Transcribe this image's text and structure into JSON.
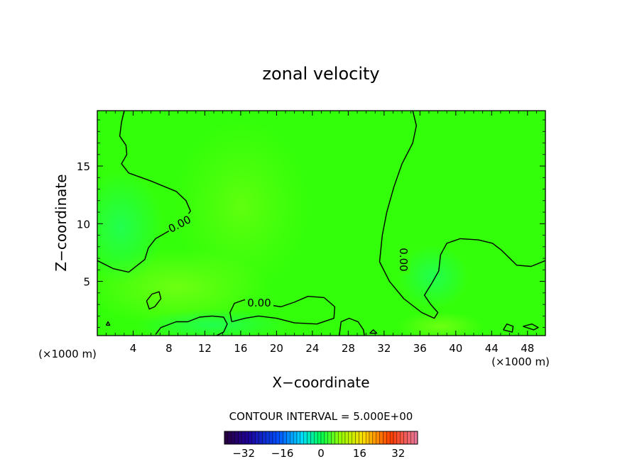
{
  "chart_data": {
    "type": "heatmap",
    "title": "zonal velocity",
    "xlabel": "X−coordinate",
    "ylabel": "Z−coordinate",
    "xlim": [
      0,
      50
    ],
    "ylim": [
      0.3,
      19.8
    ],
    "x_ticks": [
      4,
      8,
      12,
      16,
      20,
      24,
      28,
      32,
      36,
      40,
      44,
      48
    ],
    "x_tick_labels": [
      "4",
      "8",
      "12",
      "16",
      "20",
      "24",
      "28",
      "32",
      "36",
      "40",
      "44",
      "48"
    ],
    "y_ticks": [
      5,
      10,
      15
    ],
    "y_tick_labels": [
      "5",
      "10",
      "15"
    ],
    "x_unit_left": "(×1000 m)",
    "x_unit_right": "(×1000 m)",
    "contour_level": 0,
    "contour_labels": [
      "0.00",
      "0.00",
      "0.00"
    ],
    "contour_interval_text": "CONTOUR INTERVAL = 5.000E+00",
    "colorbar": {
      "range": [
        -40,
        40
      ],
      "tick_values": [
        -32,
        -16,
        0,
        16,
        32
      ],
      "tick_labels": [
        "−32",
        "−16",
        "0",
        "16",
        "32"
      ]
    },
    "contour_lines": [
      [
        [
          3.0,
          19.8
        ],
        [
          2.7,
          18.8
        ],
        [
          2.5,
          17.6
        ],
        [
          3.2,
          16.8
        ],
        [
          3.3,
          16.0
        ],
        [
          2.7,
          15.2
        ],
        [
          3.5,
          14.4
        ],
        [
          6.0,
          13.7
        ],
        [
          8.8,
          12.8
        ],
        [
          9.9,
          12.0
        ],
        [
          10.4,
          11.1
        ],
        [
          9.6,
          10.2
        ],
        [
          8.3,
          9.5
        ],
        [
          6.5,
          8.7
        ],
        [
          5.7,
          7.9
        ],
        [
          5.3,
          6.9
        ],
        [
          3.5,
          5.8
        ],
        [
          1.8,
          6.1
        ],
        [
          0,
          6.8
        ]
      ],
      [
        [
          35.2,
          19.8
        ],
        [
          35.6,
          18.5
        ],
        [
          35.2,
          17.0
        ],
        [
          34.0,
          15.2
        ],
        [
          33.1,
          13.2
        ],
        [
          32.3,
          11.0
        ],
        [
          31.8,
          9.0
        ],
        [
          31.5,
          6.7
        ],
        [
          32.6,
          5.0
        ],
        [
          34.2,
          3.5
        ],
        [
          36.2,
          2.3
        ],
        [
          37.6,
          1.8
        ],
        [
          38.0,
          2.3
        ],
        [
          37.2,
          3.0
        ],
        [
          36.5,
          3.8
        ],
        [
          37.3,
          4.8
        ],
        [
          38.1,
          5.9
        ],
        [
          38.3,
          7.3
        ],
        [
          39.0,
          8.3
        ],
        [
          40.5,
          8.7
        ],
        [
          42.5,
          8.6
        ],
        [
          44.1,
          8.3
        ],
        [
          45.1,
          7.7
        ],
        [
          46.8,
          6.4
        ],
        [
          48.4,
          6.3
        ],
        [
          50,
          6.8
        ]
      ],
      [
        [
          15.0,
          1.5
        ],
        [
          14.8,
          2.3
        ],
        [
          15.3,
          3.1
        ],
        [
          16.4,
          3.4
        ],
        [
          18.8,
          3.0
        ],
        [
          20.5,
          2.8
        ],
        [
          22.0,
          3.2
        ],
        [
          23.5,
          3.7
        ],
        [
          25.3,
          3.6
        ],
        [
          26.5,
          2.8
        ],
        [
          26.4,
          1.8
        ],
        [
          24.5,
          1.3
        ],
        [
          22.0,
          1.4
        ],
        [
          20.0,
          1.8
        ],
        [
          18.0,
          2.0
        ],
        [
          16.5,
          1.8
        ],
        [
          15.0,
          1.5
        ]
      ],
      [
        [
          5.5,
          3.3
        ],
        [
          6.1,
          3.9
        ],
        [
          6.9,
          4.1
        ],
        [
          7.1,
          3.5
        ],
        [
          6.4,
          2.8
        ],
        [
          5.8,
          2.6
        ],
        [
          5.5,
          3.3
        ]
      ],
      [
        [
          6.5,
          0.4
        ],
        [
          7.1,
          1.0
        ],
        [
          8.8,
          1.5
        ],
        [
          10.1,
          1.5
        ],
        [
          11.4,
          1.9
        ],
        [
          12.8,
          2.0
        ],
        [
          14.1,
          1.9
        ],
        [
          14.5,
          1.3
        ],
        [
          14.1,
          0.6
        ],
        [
          13.3,
          0.3
        ]
      ],
      [
        [
          27.0,
          0.3
        ],
        [
          27.2,
          1.5
        ],
        [
          28.1,
          1.8
        ],
        [
          29.1,
          1.5
        ],
        [
          29.7,
          0.8
        ],
        [
          29.8,
          0.3
        ]
      ],
      [
        [
          45.3,
          0.8
        ],
        [
          45.7,
          1.3
        ],
        [
          46.4,
          1.1
        ],
        [
          46.3,
          0.6
        ],
        [
          45.3,
          0.8
        ]
      ],
      [
        [
          47.5,
          1.1
        ],
        [
          48.5,
          1.3
        ],
        [
          49.2,
          1.0
        ],
        [
          48.7,
          0.8
        ],
        [
          47.5,
          1.1
        ]
      ],
      [
        [
          30.4,
          0.5
        ],
        [
          30.8,
          0.8
        ],
        [
          31.2,
          0.5
        ],
        [
          30.4,
          0.5
        ]
      ],
      [
        [
          1.0,
          1.2
        ],
        [
          1.2,
          1.5
        ],
        [
          1.4,
          1.2
        ],
        [
          1.0,
          1.2
        ]
      ]
    ]
  }
}
